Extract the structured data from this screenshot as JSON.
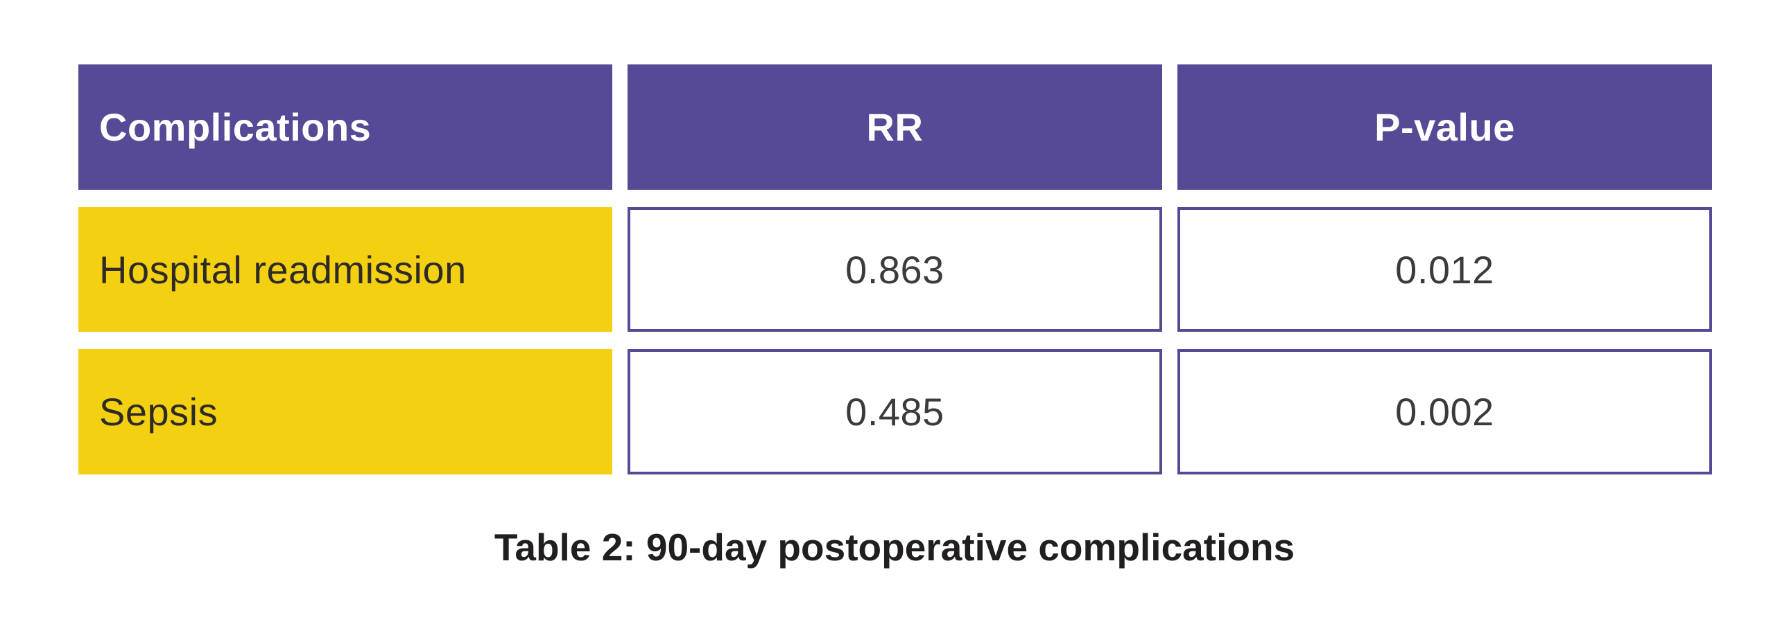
{
  "theme": {
    "background": "#ffffff",
    "purple": "#564a96",
    "yellow": "#f4d013",
    "label-text": "#2e2a25",
    "value-text": "#3b3b3b",
    "caption-text": "#211e1f"
  },
  "table": {
    "columns": [
      "Complications",
      "RR",
      "P-value"
    ],
    "rows": [
      {
        "label": "Hospital readmission",
        "rr": "0.863",
        "p": "0.012"
      },
      {
        "label": "Sepsis",
        "rr": "0.485",
        "p": "0.002"
      }
    ]
  },
  "caption": "Table 2: 90-day postoperative complications",
  "chart_data": {
    "type": "table",
    "title": "Table 2: 90-day postoperative complications",
    "columns": [
      "Complications",
      "RR",
      "P-value"
    ],
    "rows": [
      [
        "Hospital readmission",
        0.863,
        0.012
      ],
      [
        "Sepsis",
        0.485,
        0.002
      ]
    ],
    "layout_hints": {
      "header_style": "purple background, white bold text",
      "label_column_style": "yellow background, dark text, left-aligned",
      "value_cells_style": "white background, purple border, centered",
      "caption_position": "below table, centered, bold"
    }
  }
}
